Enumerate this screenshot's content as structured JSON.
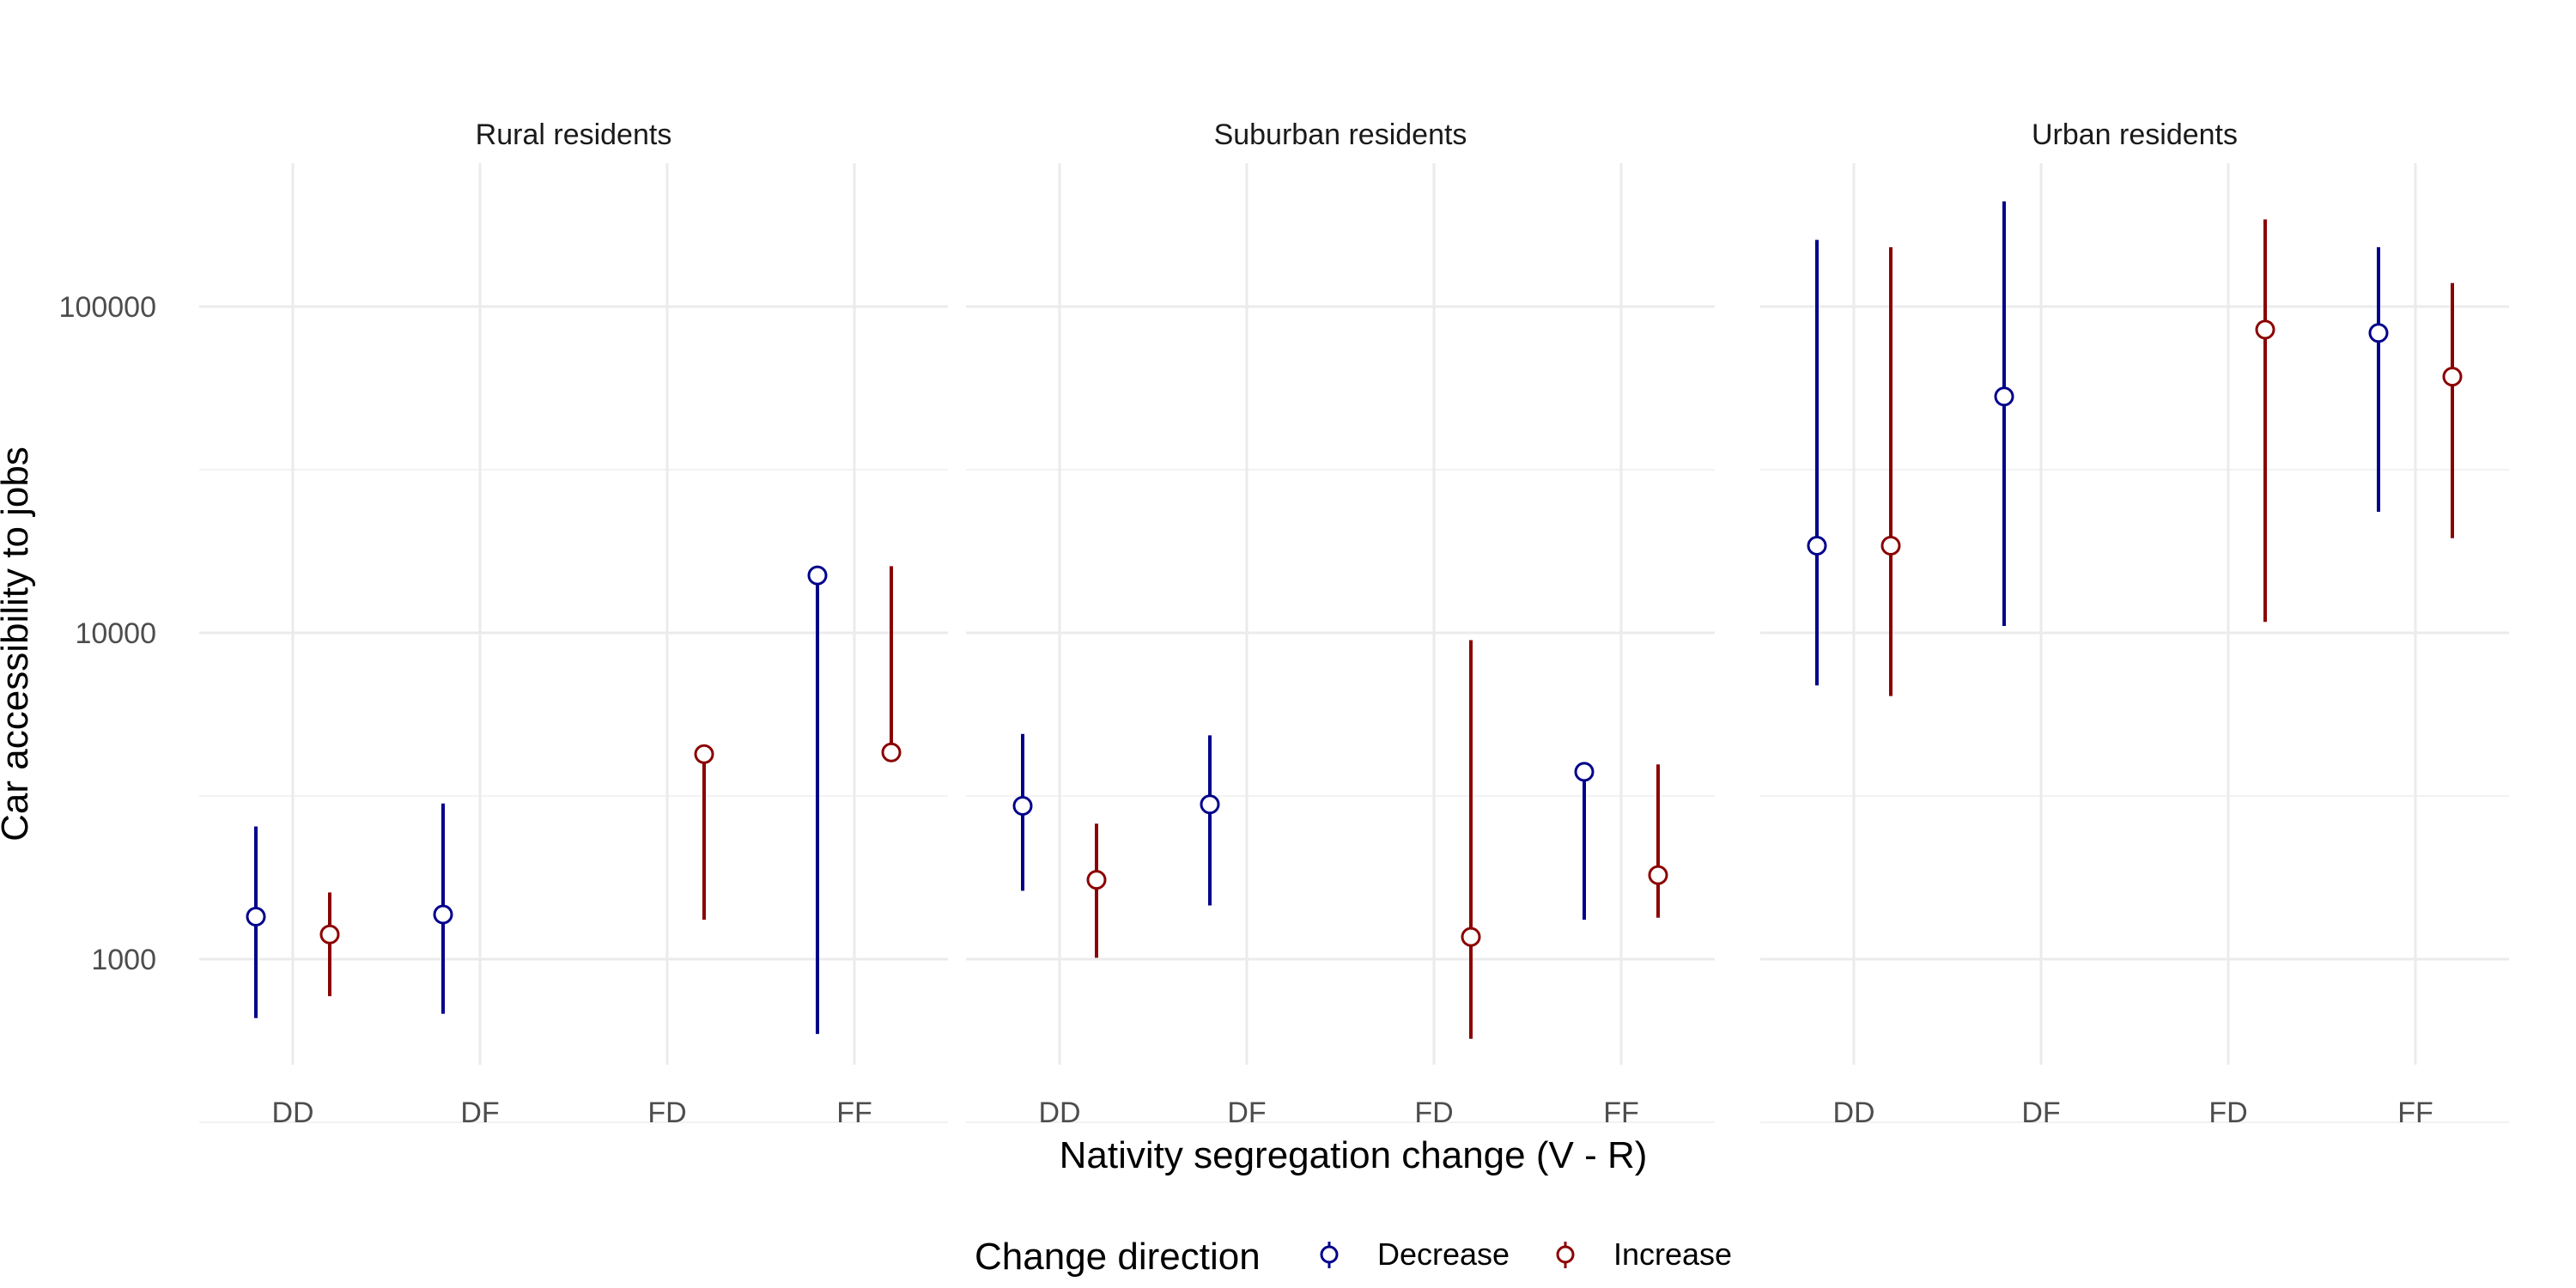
{
  "chart_data": {
    "type": "errorbar",
    "ylabel": "Car accessibility to jobs",
    "xlabel": "Nativity segregation change (V - R)",
    "y_scale": "log10",
    "ylim": [
      450,
      280000
    ],
    "y_ticks": [
      1000,
      10000,
      100000
    ],
    "y_tick_labels": [
      "1000",
      "10000",
      "100000"
    ],
    "categories": [
      "DD",
      "DF",
      "FD",
      "FF"
    ],
    "grid": true,
    "legend": {
      "title": "Change direction",
      "position": "bottom",
      "items": [
        {
          "name": "Decrease",
          "color": "#00008B"
        },
        {
          "name": "Increase",
          "color": "#8B0000"
        }
      ]
    },
    "panels": [
      {
        "title": "Rural residents",
        "series": [
          {
            "name": "Decrease",
            "points": [
              {
                "category": "DD",
                "y": 1350,
                "low": 660,
                "high": 2550
              },
              {
                "category": "DF",
                "y": 1370,
                "low": 680,
                "high": 3000
              },
              {
                "category": "FF",
                "y": 15000,
                "low": 590,
                "high": 15000
              }
            ]
          },
          {
            "name": "Increase",
            "points": [
              {
                "category": "DD",
                "y": 1190,
                "low": 770,
                "high": 1600
              },
              {
                "category": "FD",
                "y": 4250,
                "low": 1320,
                "high": 4250
              },
              {
                "category": "FF",
                "y": 4300,
                "low": 4300,
                "high": 16000
              }
            ]
          }
        ]
      },
      {
        "title": "Suburban residents",
        "series": [
          {
            "name": "Decrease",
            "points": [
              {
                "category": "DD",
                "y": 2950,
                "low": 1620,
                "high": 4900
              },
              {
                "category": "DF",
                "y": 2980,
                "low": 1460,
                "high": 4850
              },
              {
                "category": "FF",
                "y": 3750,
                "low": 1320,
                "high": 3750
              }
            ]
          },
          {
            "name": "Increase",
            "points": [
              {
                "category": "DD",
                "y": 1750,
                "low": 1010,
                "high": 2600
              },
              {
                "category": "FD",
                "y": 1170,
                "low": 570,
                "high": 9500
              },
              {
                "category": "FF",
                "y": 1810,
                "low": 1340,
                "high": 3950
              }
            ]
          }
        ]
      },
      {
        "title": "Urban residents",
        "series": [
          {
            "name": "Decrease",
            "points": [
              {
                "category": "DD",
                "y": 18500,
                "low": 6900,
                "high": 160000
              },
              {
                "category": "DF",
                "y": 53000,
                "low": 10500,
                "high": 210000
              },
              {
                "category": "FF",
                "y": 83000,
                "low": 23500,
                "high": 152000
              }
            ]
          },
          {
            "name": "Increase",
            "points": [
              {
                "category": "DD",
                "y": 18500,
                "low": 6400,
                "high": 152000
              },
              {
                "category": "FD",
                "y": 85000,
                "low": 10800,
                "high": 185000
              },
              {
                "category": "FF",
                "y": 61000,
                "low": 19500,
                "high": 118000
              }
            ]
          }
        ]
      }
    ]
  }
}
